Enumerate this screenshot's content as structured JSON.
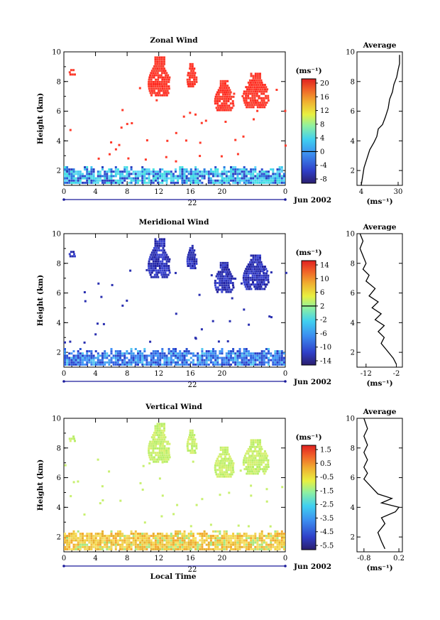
{
  "chart_data": [
    {
      "type": "heatmap",
      "title": "Zonal Wind",
      "ylabel": "Height (km)",
      "ylim": [
        1,
        10
      ],
      "yticks": [
        "2",
        "4",
        "6",
        "8",
        "10"
      ],
      "xlim": [
        0,
        28
      ],
      "xticks": [
        "0",
        "4",
        "8",
        "12",
        "16",
        "20",
        "0"
      ],
      "date_tick": "22",
      "date_label": "Jun 2002",
      "unit": "(ms⁻¹)",
      "colorbar": {
        "ticks": [
          "20",
          "16",
          "12",
          "8",
          "4",
          "0",
          "-4",
          "-8"
        ],
        "zero_label": "0"
      },
      "average": {
        "title": "Average",
        "xlabel": "(ms⁻¹)",
        "xticks": [
          "4",
          "30"
        ],
        "yticks": [
          "2",
          "4",
          "6",
          "8",
          "10"
        ],
        "xlim": [
          1,
          33
        ],
        "points": [
          [
            4,
            1
          ],
          [
            5,
            1.6
          ],
          [
            6,
            2.2
          ],
          [
            8,
            2.8
          ],
          [
            10,
            3.4
          ],
          [
            13,
            3.9
          ],
          [
            15,
            4.3
          ],
          [
            16,
            4.8
          ],
          [
            19,
            5.1
          ],
          [
            21,
            5.6
          ],
          [
            23,
            6.2
          ],
          [
            24,
            6.8
          ],
          [
            26,
            7.3
          ],
          [
            27,
            7.8
          ],
          [
            29,
            8.3
          ],
          [
            30,
            8.8
          ],
          [
            31,
            9.2
          ],
          [
            31,
            9.8
          ]
        ]
      }
    },
    {
      "type": "heatmap",
      "title": "Meridional Wind",
      "ylabel": "Height (km)",
      "ylim": [
        1,
        10
      ],
      "yticks": [
        "2",
        "4",
        "6",
        "8",
        "10"
      ],
      "xlim": [
        0,
        28
      ],
      "xticks": [
        "0",
        "4",
        "8",
        "12",
        "16",
        "20",
        "0"
      ],
      "date_tick": "22",
      "date_label": "Jun 2002",
      "unit": "(ms⁻¹)",
      "colorbar": {
        "ticks": [
          "14",
          "10",
          "6",
          "2",
          "-2",
          "-6",
          "-10",
          "-14"
        ],
        "zero_label": "2"
      },
      "average": {
        "title": "Average",
        "xlabel": "(ms⁻¹)",
        "xticks": [
          "-12",
          "-2"
        ],
        "yticks": [
          "2",
          "4",
          "6",
          "8",
          "10"
        ],
        "xlim": [
          -15,
          0
        ],
        "points": [
          [
            -2,
            1.2
          ],
          [
            -3,
            1.6
          ],
          [
            -5,
            2.1
          ],
          [
            -7,
            2.6
          ],
          [
            -6,
            3.0
          ],
          [
            -8,
            3.4
          ],
          [
            -6,
            3.8
          ],
          [
            -9,
            4.2
          ],
          [
            -7,
            4.6
          ],
          [
            -10,
            5.0
          ],
          [
            -8,
            5.4
          ],
          [
            -11,
            5.8
          ],
          [
            -9,
            6.3
          ],
          [
            -12,
            6.8
          ],
          [
            -11,
            7.2
          ],
          [
            -13,
            7.6
          ],
          [
            -12,
            8.0
          ],
          [
            -13,
            8.5
          ],
          [
            -14,
            9.0
          ],
          [
            -13,
            9.5
          ],
          [
            -14,
            10
          ]
        ]
      }
    },
    {
      "type": "heatmap",
      "title": "Vertical Wind",
      "ylabel": "Height (km)",
      "ylim": [
        1,
        10
      ],
      "yticks": [
        "2",
        "4",
        "6",
        "8",
        "10"
      ],
      "xlim": [
        0,
        28
      ],
      "xticks": [
        "0",
        "4",
        "8",
        "12",
        "16",
        "20",
        "0"
      ],
      "date_tick": "22",
      "date_label": "Jun 2002",
      "xlabel": "Local Time",
      "unit": "(ms⁻¹)",
      "colorbar": {
        "ticks": [
          "1.5",
          "0.5",
          "-0.5",
          "-1.5",
          "-2.5",
          "-3.5",
          "-4.5",
          "-5.5"
        ]
      },
      "average": {
        "title": "Average",
        "xlabel": "(ms⁻¹)",
        "xticks": [
          "-0.8",
          "0.2"
        ],
        "yticks": [
          "2",
          "4",
          "6",
          "8",
          "10"
        ],
        "xlim": [
          -1.0,
          0.3
        ],
        "points": [
          [
            -0.2,
            1.2
          ],
          [
            -0.3,
            1.7
          ],
          [
            -0.4,
            2.3
          ],
          [
            -0.2,
            2.9
          ],
          [
            -0.3,
            3.3
          ],
          [
            0.1,
            3.7
          ],
          [
            0.2,
            4.0
          ],
          [
            -0.3,
            4.3
          ],
          [
            0.0,
            4.6
          ],
          [
            -0.4,
            4.9
          ],
          [
            -0.6,
            5.4
          ],
          [
            -0.8,
            5.9
          ],
          [
            -0.7,
            6.3
          ],
          [
            -0.8,
            6.7
          ],
          [
            -0.7,
            7.2
          ],
          [
            -0.8,
            7.7
          ],
          [
            -0.7,
            8.2
          ],
          [
            -0.8,
            8.8
          ],
          [
            -0.7,
            9.3
          ],
          [
            -0.8,
            10
          ]
        ]
      }
    }
  ],
  "colors": {
    "zonal_high": "#ff3a2a",
    "meridional_high": "#2830b8",
    "vertical_high": "#c8f070",
    "low_cyan": "#40c8f0",
    "low_yellow": "#f2d040"
  }
}
